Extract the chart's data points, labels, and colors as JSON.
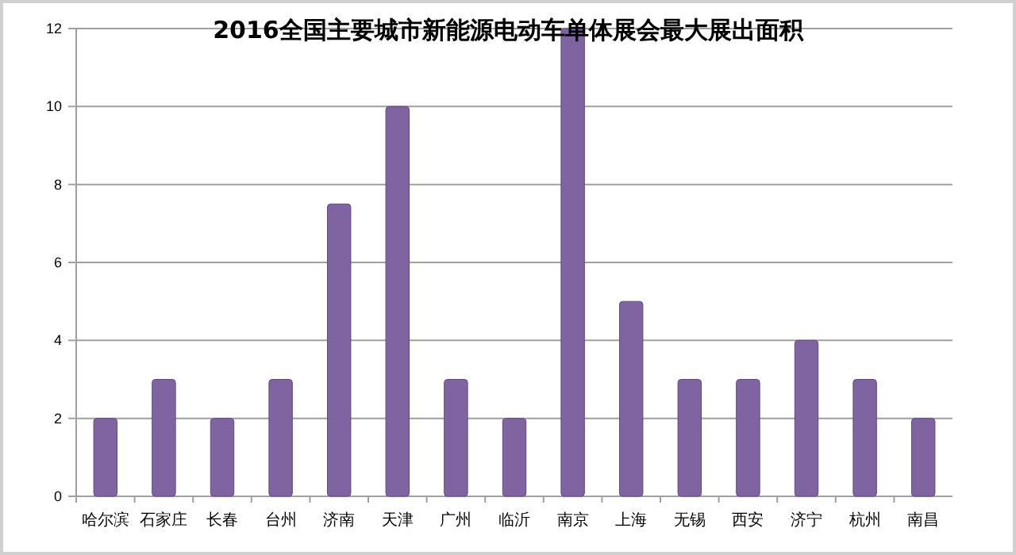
{
  "chart_data": {
    "type": "bar",
    "title": "2016全国主要城市新能源电动车单体展会最大展出面积",
    "categories": [
      "哈尔滨",
      "石家庄",
      "长春",
      "台州",
      "济南",
      "天津",
      "广州",
      "临沂",
      "南京",
      "上海",
      "无锡",
      "西安",
      "济宁",
      "杭州",
      "南昌"
    ],
    "values": [
      2,
      3,
      2,
      3,
      7.5,
      10,
      3,
      2,
      12,
      5,
      3,
      3,
      4,
      3,
      2
    ],
    "color": "#8064a2",
    "ylim": [
      0,
      12
    ],
    "yticks": [
      0,
      2,
      4,
      6,
      8,
      10,
      12
    ],
    "grid": "y"
  }
}
